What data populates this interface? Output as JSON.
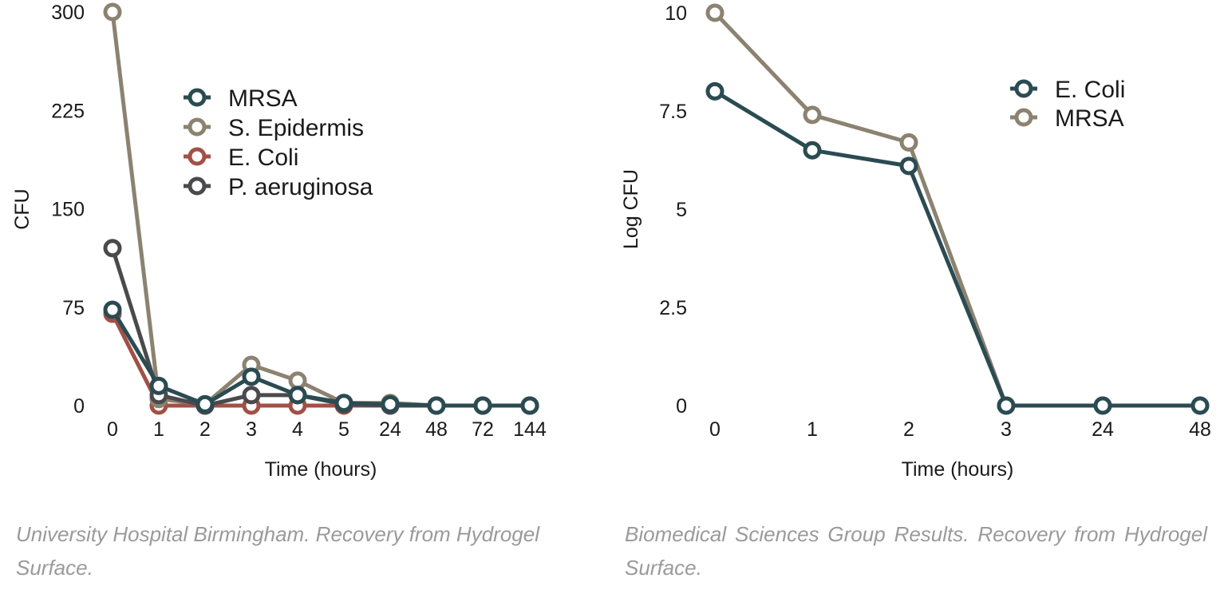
{
  "chart_data": [
    {
      "type": "line",
      "categories": [
        "0",
        "1",
        "2",
        "3",
        "4",
        "5",
        "24",
        "48",
        "72",
        "144"
      ],
      "xlabel": "Time (hours)",
      "ylabel": "CFU",
      "ylim": [
        0,
        300
      ],
      "yticks": [
        "0",
        "75",
        "150",
        "225",
        "300"
      ],
      "legend_position": "top-center",
      "caption": "University Hospital Birmingham. Recovery from Hydrogel Surface.",
      "series": [
        {
          "name": "MRSA",
          "color": "#2b4b52",
          "values": [
            73,
            15,
            1,
            22,
            8,
            2,
            1,
            0,
            0,
            0
          ]
        },
        {
          "name": "S. Epidermis",
          "color": "#8b8270",
          "values": [
            300,
            5,
            1,
            31,
            19,
            2,
            2,
            0,
            0,
            0
          ]
        },
        {
          "name": "E. Coli",
          "color": "#a15046",
          "values": [
            70,
            0,
            0,
            0,
            0,
            0,
            0,
            0,
            0,
            0
          ]
        },
        {
          "name": "P. aeruginosa",
          "color": "#4a4a4c",
          "values": [
            120,
            8,
            0,
            8,
            8,
            1,
            0,
            0,
            0,
            0
          ]
        }
      ]
    },
    {
      "type": "line",
      "categories": [
        "0",
        "1",
        "2",
        "3",
        "24",
        "48"
      ],
      "xlabel": "Time (hours)",
      "ylabel": "Log CFU",
      "ylim": [
        0,
        10
      ],
      "yticks": [
        "0",
        "2.5",
        "5",
        "7.5",
        "10"
      ],
      "legend_position": "top-right",
      "caption": "Biomedical Sciences Group Results. Recovery from Hydrogel Surface.",
      "series": [
        {
          "name": "E. Coli",
          "color": "#2b4b52",
          "values": [
            8.0,
            6.5,
            6.1,
            0,
            0,
            0
          ]
        },
        {
          "name": "MRSA",
          "color": "#8b8270",
          "values": [
            10.0,
            7.4,
            6.7,
            0,
            0,
            0
          ]
        }
      ]
    }
  ]
}
